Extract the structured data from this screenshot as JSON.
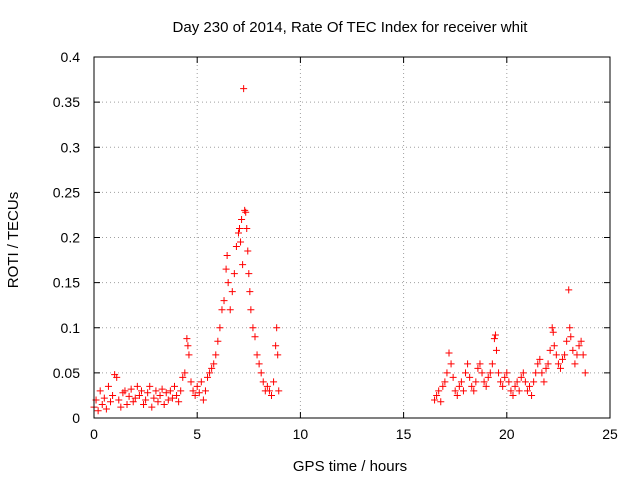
{
  "chart_data": {
    "type": "scatter",
    "title": "Day 230 of 2014, Rate Of TEC Index for receiver whit",
    "xlabel": "GPS time / hours",
    "ylabel": "ROTI / TECUs",
    "xlim": [
      0,
      25
    ],
    "ylim": [
      0,
      0.4
    ],
    "xticks": [
      0,
      5,
      10,
      15,
      20,
      25
    ],
    "xtick_labels": [
      "0",
      "5",
      "10",
      "15",
      "20",
      "25"
    ],
    "yticks": [
      0,
      0.05,
      0.1,
      0.15,
      0.2,
      0.25,
      0.3,
      0.35,
      0.4
    ],
    "ytick_labels": [
      "0",
      "0.05",
      "0.1",
      "0.15",
      "0.2",
      "0.25",
      "0.3",
      "0.35",
      "0.4"
    ],
    "grid": true,
    "marker": "+",
    "color": "#ff0000",
    "series": [
      {
        "points": [
          [
            0.0,
            0.012
          ],
          [
            0.1,
            0.02
          ],
          [
            0.2,
            0.008
          ],
          [
            0.3,
            0.03
          ],
          [
            0.4,
            0.015
          ],
          [
            0.5,
            0.022
          ],
          [
            0.6,
            0.01
          ],
          [
            0.7,
            0.035
          ],
          [
            0.8,
            0.018
          ],
          [
            0.9,
            0.025
          ],
          [
            1.0,
            0.048
          ],
          [
            1.1,
            0.045
          ],
          [
            1.2,
            0.02
          ],
          [
            1.3,
            0.012
          ],
          [
            1.4,
            0.028
          ],
          [
            1.5,
            0.03
          ],
          [
            1.6,
            0.015
          ],
          [
            1.7,
            0.024
          ],
          [
            1.8,
            0.032
          ],
          [
            1.9,
            0.018
          ],
          [
            2.0,
            0.022
          ],
          [
            2.1,
            0.035
          ],
          [
            2.2,
            0.025
          ],
          [
            2.3,
            0.03
          ],
          [
            2.4,
            0.015
          ],
          [
            2.5,
            0.02
          ],
          [
            2.6,
            0.028
          ],
          [
            2.7,
            0.035
          ],
          [
            2.8,
            0.012
          ],
          [
            2.9,
            0.022
          ],
          [
            3.0,
            0.03
          ],
          [
            3.1,
            0.018
          ],
          [
            3.2,
            0.025
          ],
          [
            3.3,
            0.032
          ],
          [
            3.4,
            0.015
          ],
          [
            3.5,
            0.028
          ],
          [
            3.6,
            0.02
          ],
          [
            3.7,
            0.03
          ],
          [
            3.8,
            0.022
          ],
          [
            3.9,
            0.035
          ],
          [
            4.0,
            0.025
          ],
          [
            4.1,
            0.018
          ],
          [
            4.2,
            0.03
          ],
          [
            4.3,
            0.045
          ],
          [
            4.4,
            0.05
          ],
          [
            4.5,
            0.088
          ],
          [
            4.55,
            0.08
          ],
          [
            4.6,
            0.07
          ],
          [
            4.7,
            0.04
          ],
          [
            4.8,
            0.03
          ],
          [
            4.9,
            0.025
          ],
          [
            5.0,
            0.035
          ],
          [
            5.1,
            0.028
          ],
          [
            5.2,
            0.04
          ],
          [
            5.3,
            0.02
          ],
          [
            5.4,
            0.03
          ],
          [
            5.5,
            0.045
          ],
          [
            5.6,
            0.05
          ],
          [
            5.7,
            0.055
          ],
          [
            5.8,
            0.06
          ],
          [
            5.9,
            0.07
          ],
          [
            6.0,
            0.085
          ],
          [
            6.1,
            0.1
          ],
          [
            6.2,
            0.12
          ],
          [
            6.3,
            0.13
          ],
          [
            6.4,
            0.165
          ],
          [
            6.45,
            0.18
          ],
          [
            6.5,
            0.15
          ],
          [
            6.6,
            0.12
          ],
          [
            6.7,
            0.14
          ],
          [
            6.8,
            0.16
          ],
          [
            6.9,
            0.19
          ],
          [
            7.0,
            0.205
          ],
          [
            7.05,
            0.21
          ],
          [
            7.1,
            0.195
          ],
          [
            7.15,
            0.22
          ],
          [
            7.2,
            0.17
          ],
          [
            7.25,
            0.365
          ],
          [
            7.3,
            0.23
          ],
          [
            7.35,
            0.228
          ],
          [
            7.4,
            0.21
          ],
          [
            7.45,
            0.185
          ],
          [
            7.5,
            0.16
          ],
          [
            7.55,
            0.14
          ],
          [
            7.6,
            0.12
          ],
          [
            7.7,
            0.1
          ],
          [
            7.8,
            0.09
          ],
          [
            7.9,
            0.07
          ],
          [
            8.0,
            0.06
          ],
          [
            8.1,
            0.05
          ],
          [
            8.2,
            0.04
          ],
          [
            8.3,
            0.03
          ],
          [
            8.4,
            0.035
          ],
          [
            8.5,
            0.03
          ],
          [
            8.6,
            0.025
          ],
          [
            8.7,
            0.04
          ],
          [
            8.8,
            0.08
          ],
          [
            8.85,
            0.1
          ],
          [
            8.9,
            0.07
          ],
          [
            8.95,
            0.03
          ],
          [
            16.5,
            0.02
          ],
          [
            16.6,
            0.025
          ],
          [
            16.7,
            0.03
          ],
          [
            16.8,
            0.018
          ],
          [
            16.9,
            0.035
          ],
          [
            17.0,
            0.04
          ],
          [
            17.1,
            0.05
          ],
          [
            17.2,
            0.072
          ],
          [
            17.3,
            0.06
          ],
          [
            17.4,
            0.045
          ],
          [
            17.5,
            0.03
          ],
          [
            17.6,
            0.025
          ],
          [
            17.7,
            0.035
          ],
          [
            17.8,
            0.04
          ],
          [
            17.9,
            0.03
          ],
          [
            18.0,
            0.05
          ],
          [
            18.1,
            0.06
          ],
          [
            18.2,
            0.045
          ],
          [
            18.3,
            0.035
          ],
          [
            18.4,
            0.03
          ],
          [
            18.5,
            0.04
          ],
          [
            18.6,
            0.055
          ],
          [
            18.7,
            0.06
          ],
          [
            18.8,
            0.05
          ],
          [
            18.9,
            0.04
          ],
          [
            19.0,
            0.035
          ],
          [
            19.1,
            0.045
          ],
          [
            19.2,
            0.05
          ],
          [
            19.3,
            0.06
          ],
          [
            19.4,
            0.088
          ],
          [
            19.45,
            0.092
          ],
          [
            19.5,
            0.075
          ],
          [
            19.6,
            0.05
          ],
          [
            19.7,
            0.04
          ],
          [
            19.8,
            0.035
          ],
          [
            19.9,
            0.045
          ],
          [
            20.0,
            0.05
          ],
          [
            20.1,
            0.04
          ],
          [
            20.2,
            0.03
          ],
          [
            20.3,
            0.025
          ],
          [
            20.4,
            0.035
          ],
          [
            20.5,
            0.04
          ],
          [
            20.6,
            0.03
          ],
          [
            20.7,
            0.045
          ],
          [
            20.8,
            0.05
          ],
          [
            20.9,
            0.04
          ],
          [
            21.0,
            0.03
          ],
          [
            21.1,
            0.035
          ],
          [
            21.2,
            0.025
          ],
          [
            21.3,
            0.04
          ],
          [
            21.4,
            0.05
          ],
          [
            21.5,
            0.06
          ],
          [
            21.6,
            0.065
          ],
          [
            21.7,
            0.05
          ],
          [
            21.8,
            0.04
          ],
          [
            21.9,
            0.055
          ],
          [
            22.0,
            0.06
          ],
          [
            22.1,
            0.075
          ],
          [
            22.2,
            0.1
          ],
          [
            22.25,
            0.095
          ],
          [
            22.3,
            0.08
          ],
          [
            22.4,
            0.07
          ],
          [
            22.5,
            0.06
          ],
          [
            22.6,
            0.055
          ],
          [
            22.7,
            0.065
          ],
          [
            22.8,
            0.07
          ],
          [
            22.9,
            0.085
          ],
          [
            23.0,
            0.142
          ],
          [
            23.05,
            0.1
          ],
          [
            23.1,
            0.09
          ],
          [
            23.2,
            0.075
          ],
          [
            23.3,
            0.06
          ],
          [
            23.4,
            0.07
          ],
          [
            23.5,
            0.08
          ],
          [
            23.6,
            0.085
          ],
          [
            23.7,
            0.07
          ],
          [
            23.8,
            0.05
          ]
        ]
      }
    ]
  }
}
